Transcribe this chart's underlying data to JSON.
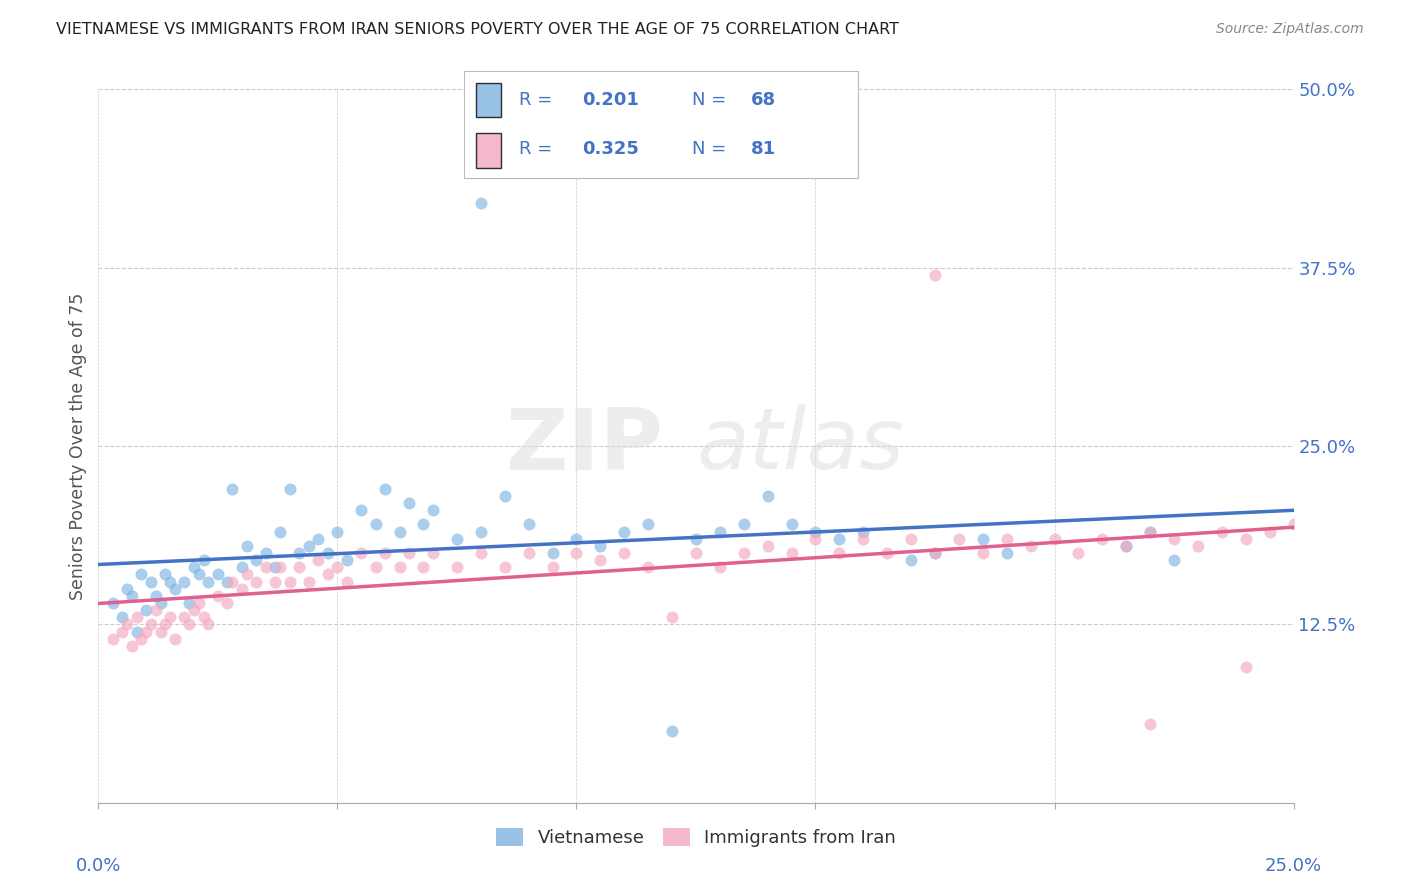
{
  "title": "VIETNAMESE VS IMMIGRANTS FROM IRAN SENIORS POVERTY OVER THE AGE OF 75 CORRELATION CHART",
  "source": "Source: ZipAtlas.com",
  "ylabel": "Seniors Poverty Over the Age of 75",
  "ytick_labels": [
    "",
    "12.5%",
    "25.0%",
    "37.5%",
    "50.0%"
  ],
  "ytick_values": [
    0,
    0.125,
    0.25,
    0.375,
    0.5
  ],
  "xlim": [
    0,
    0.25
  ],
  "ylim": [
    0,
    0.5
  ],
  "legend_labels": [
    "Vietnamese",
    "Immigrants from Iran"
  ],
  "color_blue": "#7EB4E2",
  "color_pink": "#F4A8BE",
  "line_blue": "#4472C4",
  "line_pink": "#E06090",
  "background_color": "#FFFFFF",
  "grid_color": "#CCCCCC",
  "axis_label_color": "#4472C4",
  "viet_x": [
    0.003,
    0.005,
    0.006,
    0.007,
    0.008,
    0.009,
    0.01,
    0.011,
    0.012,
    0.013,
    0.014,
    0.015,
    0.016,
    0.018,
    0.019,
    0.02,
    0.021,
    0.022,
    0.023,
    0.025,
    0.027,
    0.028,
    0.03,
    0.031,
    0.033,
    0.035,
    0.037,
    0.038,
    0.04,
    0.042,
    0.044,
    0.046,
    0.048,
    0.05,
    0.052,
    0.055,
    0.058,
    0.06,
    0.063,
    0.065,
    0.068,
    0.07,
    0.075,
    0.08,
    0.085,
    0.09,
    0.095,
    0.1,
    0.105,
    0.11,
    0.115,
    0.12,
    0.125,
    0.13,
    0.135,
    0.14,
    0.145,
    0.15,
    0.155,
    0.16,
    0.17,
    0.175,
    0.185,
    0.19,
    0.215,
    0.22,
    0.225,
    0.08
  ],
  "viet_y": [
    0.14,
    0.13,
    0.15,
    0.145,
    0.12,
    0.16,
    0.135,
    0.155,
    0.145,
    0.14,
    0.16,
    0.155,
    0.15,
    0.155,
    0.14,
    0.165,
    0.16,
    0.17,
    0.155,
    0.16,
    0.155,
    0.22,
    0.165,
    0.18,
    0.17,
    0.175,
    0.165,
    0.19,
    0.22,
    0.175,
    0.18,
    0.185,
    0.175,
    0.19,
    0.17,
    0.205,
    0.195,
    0.22,
    0.19,
    0.21,
    0.195,
    0.205,
    0.185,
    0.19,
    0.215,
    0.195,
    0.175,
    0.185,
    0.18,
    0.19,
    0.195,
    0.05,
    0.185,
    0.19,
    0.195,
    0.215,
    0.195,
    0.19,
    0.185,
    0.19,
    0.17,
    0.175,
    0.185,
    0.175,
    0.18,
    0.19,
    0.17,
    0.42
  ],
  "iran_x": [
    0.003,
    0.005,
    0.006,
    0.007,
    0.008,
    0.009,
    0.01,
    0.011,
    0.012,
    0.013,
    0.014,
    0.015,
    0.016,
    0.018,
    0.019,
    0.02,
    0.021,
    0.022,
    0.023,
    0.025,
    0.027,
    0.028,
    0.03,
    0.031,
    0.033,
    0.035,
    0.037,
    0.038,
    0.04,
    0.042,
    0.044,
    0.046,
    0.048,
    0.05,
    0.052,
    0.055,
    0.058,
    0.06,
    0.063,
    0.065,
    0.068,
    0.07,
    0.075,
    0.08,
    0.085,
    0.09,
    0.095,
    0.1,
    0.105,
    0.11,
    0.115,
    0.12,
    0.125,
    0.13,
    0.135,
    0.14,
    0.145,
    0.15,
    0.155,
    0.16,
    0.165,
    0.17,
    0.175,
    0.18,
    0.185,
    0.19,
    0.195,
    0.2,
    0.205,
    0.21,
    0.215,
    0.22,
    0.225,
    0.23,
    0.235,
    0.24,
    0.245,
    0.25,
    0.175,
    0.22,
    0.24
  ],
  "iran_y": [
    0.115,
    0.12,
    0.125,
    0.11,
    0.13,
    0.115,
    0.12,
    0.125,
    0.135,
    0.12,
    0.125,
    0.13,
    0.115,
    0.13,
    0.125,
    0.135,
    0.14,
    0.13,
    0.125,
    0.145,
    0.14,
    0.155,
    0.15,
    0.16,
    0.155,
    0.165,
    0.155,
    0.165,
    0.155,
    0.165,
    0.155,
    0.17,
    0.16,
    0.165,
    0.155,
    0.175,
    0.165,
    0.175,
    0.165,
    0.175,
    0.165,
    0.175,
    0.165,
    0.175,
    0.165,
    0.175,
    0.165,
    0.175,
    0.17,
    0.175,
    0.165,
    0.13,
    0.175,
    0.165,
    0.175,
    0.18,
    0.175,
    0.185,
    0.175,
    0.185,
    0.175,
    0.185,
    0.175,
    0.185,
    0.175,
    0.185,
    0.18,
    0.185,
    0.175,
    0.185,
    0.18,
    0.19,
    0.185,
    0.18,
    0.19,
    0.185,
    0.19,
    0.195,
    0.37,
    0.055,
    0.095
  ]
}
